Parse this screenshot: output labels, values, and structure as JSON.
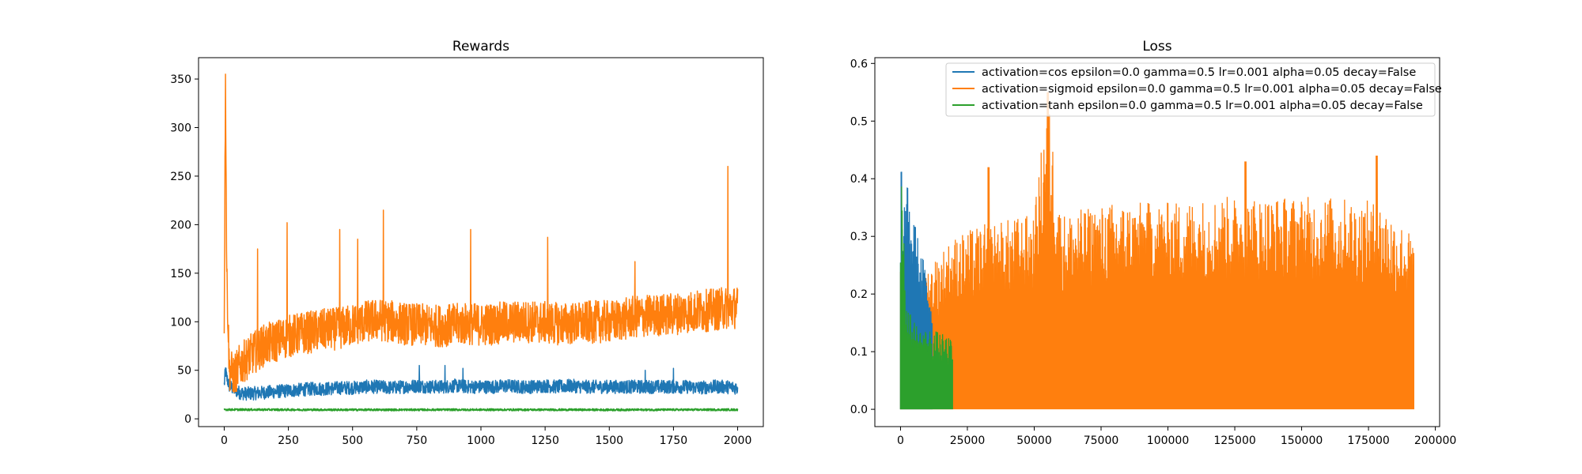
{
  "chart_data": [
    {
      "type": "line",
      "title": "Rewards",
      "xlabel": "",
      "ylabel": "",
      "xlim": [
        -100,
        2100
      ],
      "ylim": [
        -8,
        372
      ],
      "xticks": [
        0,
        250,
        500,
        750,
        1000,
        1250,
        1500,
        1750,
        2000
      ],
      "xtick_labels": [
        "0",
        "250",
        "500",
        "750",
        "1000",
        "1250",
        "1500",
        "1750",
        "2000"
      ],
      "yticks": [
        0,
        50,
        100,
        150,
        200,
        250,
        300,
        350
      ],
      "ytick_labels": [
        "0",
        "50",
        "100",
        "150",
        "200",
        "250",
        "300",
        "350"
      ],
      "grid": false,
      "series": [
        {
          "color": "#1f77b4",
          "x": [
            0,
            5,
            10,
            20,
            40,
            60,
            80,
            100,
            150,
            200,
            250,
            300,
            350,
            400,
            450,
            500,
            550,
            600,
            650,
            700,
            750,
            800,
            850,
            900,
            950,
            1000,
            1050,
            1100,
            1150,
            1200,
            1250,
            1300,
            1350,
            1400,
            1450,
            1500,
            1550,
            1600,
            1650,
            1700,
            1750,
            1800,
            1850,
            1900,
            1950,
            2000
          ],
          "y": [
            35,
            50,
            42,
            34,
            30,
            27,
            26,
            26,
            27,
            28,
            29,
            30,
            31,
            31,
            32,
            32,
            33,
            33,
            32,
            33,
            34,
            33,
            33,
            34,
            33,
            33,
            33,
            34,
            33,
            33,
            34,
            33,
            34,
            33,
            33,
            33,
            33,
            33,
            33,
            33,
            33,
            33,
            32,
            33,
            33,
            32
          ],
          "noise": 7,
          "spikes": [
            [
              860,
              55
            ],
            [
              760,
              55
            ],
            [
              930,
              52
            ],
            [
              1750,
              52
            ],
            [
              1640,
              50
            ]
          ]
        },
        {
          "color": "#ff7f0e",
          "x": [
            0,
            5,
            10,
            20,
            40,
            60,
            100,
            150,
            200,
            250,
            300,
            350,
            400,
            450,
            500,
            550,
            600,
            650,
            700,
            750,
            800,
            850,
            900,
            950,
            1000,
            1050,
            1100,
            1150,
            1200,
            1250,
            1300,
            1350,
            1400,
            1450,
            1500,
            1550,
            1600,
            1650,
            1700,
            1750,
            1800,
            1850,
            1900,
            1950,
            2000
          ],
          "y": [
            100,
            355,
            150,
            50,
            45,
            55,
            65,
            75,
            80,
            85,
            88,
            90,
            92,
            93,
            97,
            100,
            102,
            100,
            98,
            97,
            96,
            96,
            97,
            98,
            97,
            98,
            99,
            100,
            100,
            99,
            98,
            98,
            99,
            100,
            100,
            102,
            105,
            106,
            107,
            108,
            110,
            111,
            112,
            114,
            115
          ],
          "noise": 22,
          "spikes": [
            [
              5,
              355
            ],
            [
              130,
              175
            ],
            [
              245,
              202
            ],
            [
              620,
              215
            ],
            [
              960,
              195
            ],
            [
              1260,
              187
            ],
            [
              1600,
              162
            ],
            [
              1962,
              260
            ],
            [
              520,
              185
            ],
            [
              450,
              195
            ]
          ]
        },
        {
          "color": "#2ca02c",
          "x": [
            0,
            500,
            1000,
            1500,
            2000
          ],
          "y": [
            9.5,
            9.3,
            9.4,
            9.3,
            9.4
          ],
          "noise": 1.1,
          "spikes": []
        }
      ]
    },
    {
      "type": "line",
      "title": "Loss",
      "xlabel": "",
      "ylabel": "",
      "xlim": [
        -9600,
        201600
      ],
      "ylim": [
        -0.03,
        0.61
      ],
      "xticks": [
        0,
        25000,
        50000,
        75000,
        100000,
        125000,
        150000,
        175000,
        200000
      ],
      "xtick_labels": [
        "0",
        "25000",
        "50000",
        "75000",
        "100000",
        "125000",
        "150000",
        "175000",
        "200000"
      ],
      "yticks": [
        0,
        0.1,
        0.2,
        0.3,
        0.4,
        0.5,
        0.6
      ],
      "ytick_labels": [
        "0.0",
        "0.1",
        "0.2",
        "0.3",
        "0.4",
        "0.5",
        "0.6"
      ],
      "grid": false,
      "legend_position": "top-right",
      "series": [
        {
          "name": "activation=cos epsilon=0.0 gamma=0.5 lr=0.001 alpha=0.05 decay=False",
          "color": "#1f77b4",
          "x_max": 12000,
          "envelope_x": [
            0,
            300,
            800,
            1500,
            2500,
            3500,
            5000,
            6500,
            8000,
            9500,
            11000,
            12000
          ],
          "envelope_y": [
            0.3,
            0.5,
            0.32,
            0.37,
            0.39,
            0.37,
            0.34,
            0.3,
            0.27,
            0.25,
            0.23,
            0.2
          ]
        },
        {
          "name": "activation=sigmoid epsilon=0.0 gamma=0.5 lr=0.001 alpha=0.05 decay=False",
          "color": "#ff7f0e",
          "x_max": 192000,
          "envelope_x": [
            0,
            2000,
            5000,
            10000,
            20000,
            30000,
            40000,
            50000,
            55000,
            60000,
            80000,
            100000,
            120000,
            140000,
            160000,
            180000,
            192000
          ],
          "envelope_y": [
            0.3,
            0.22,
            0.21,
            0.25,
            0.3,
            0.32,
            0.33,
            0.34,
            0.55,
            0.34,
            0.36,
            0.36,
            0.37,
            0.37,
            0.37,
            0.36,
            0.3
          ],
          "spikes": [
            [
              55000,
              0.55
            ],
            [
              129000,
              0.43
            ],
            [
              178000,
              0.44
            ],
            [
              33000,
              0.42
            ]
          ]
        },
        {
          "name": "activation=tanh epsilon=0.0 gamma=0.5 lr=0.001 alpha=0.05 decay=False",
          "color": "#2ca02c",
          "x_max": 19500,
          "envelope_x": [
            0,
            500,
            1000,
            2000,
            4000,
            8000,
            12000,
            16000,
            19500
          ],
          "envelope_y": [
            0.3,
            0.48,
            0.35,
            0.2,
            0.16,
            0.14,
            0.14,
            0.13,
            0.12
          ]
        }
      ]
    }
  ]
}
